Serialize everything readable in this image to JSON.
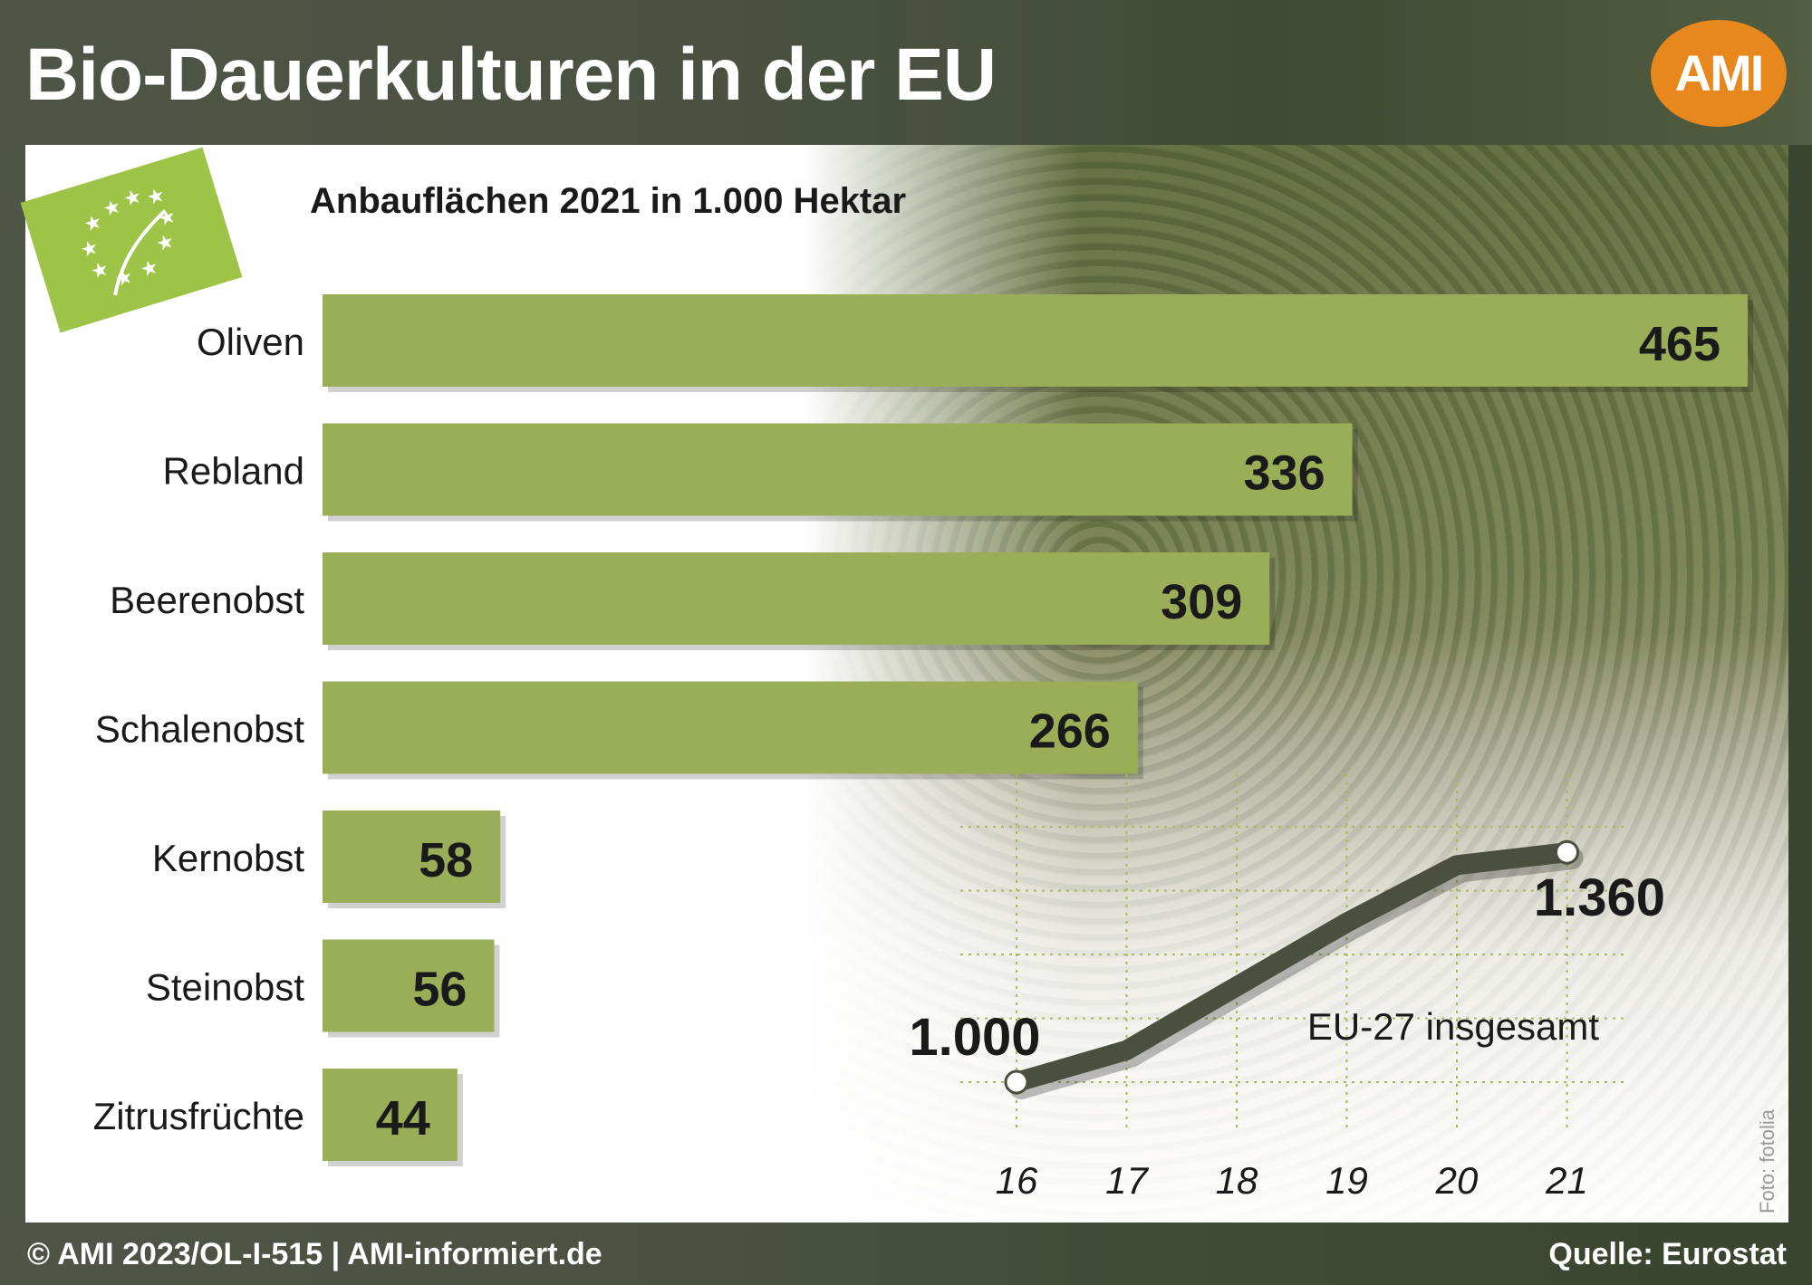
{
  "header": {
    "title": "Bio-Dauerkulturen in der EU",
    "logo_text": "AMI"
  },
  "footer": {
    "copyright": "© AMI 2023/OL-I-515 | AMI-informiert.de",
    "source": "Quelle: Eurostat"
  },
  "photo_credit": "Foto: fotolia",
  "colors": {
    "bar": "#9aae58",
    "line": "#4a4f3f",
    "logo": "#e8871c",
    "grid": "#a7b95a"
  },
  "chart_data": [
    {
      "type": "bar",
      "orientation": "horizontal",
      "title": "Anbauflächen 2021 in 1.000 Hektar",
      "categories": [
        "Oliven",
        "Rebland",
        "Beerenobst",
        "Schalenobst",
        "Kernobst",
        "Steinobst",
        "Zitrusfrüchte"
      ],
      "values": [
        465,
        336,
        309,
        266,
        58,
        56,
        44
      ],
      "value_labels": [
        "465",
        "336",
        "309",
        "266",
        "58",
        "56",
        "44"
      ],
      "xlim": [
        0,
        465
      ]
    },
    {
      "type": "line",
      "series_label": "EU-27 insgesamt",
      "x": [
        "16",
        "17",
        "18",
        "19",
        "20",
        "21"
      ],
      "y": [
        1000,
        1050,
        1150,
        1250,
        1340,
        1360
      ],
      "point_labels": [
        {
          "index": 0,
          "text": "1.000"
        },
        {
          "index": 5,
          "text": "1.360"
        }
      ],
      "ylim": [
        1000,
        1400
      ],
      "grid": true
    }
  ]
}
